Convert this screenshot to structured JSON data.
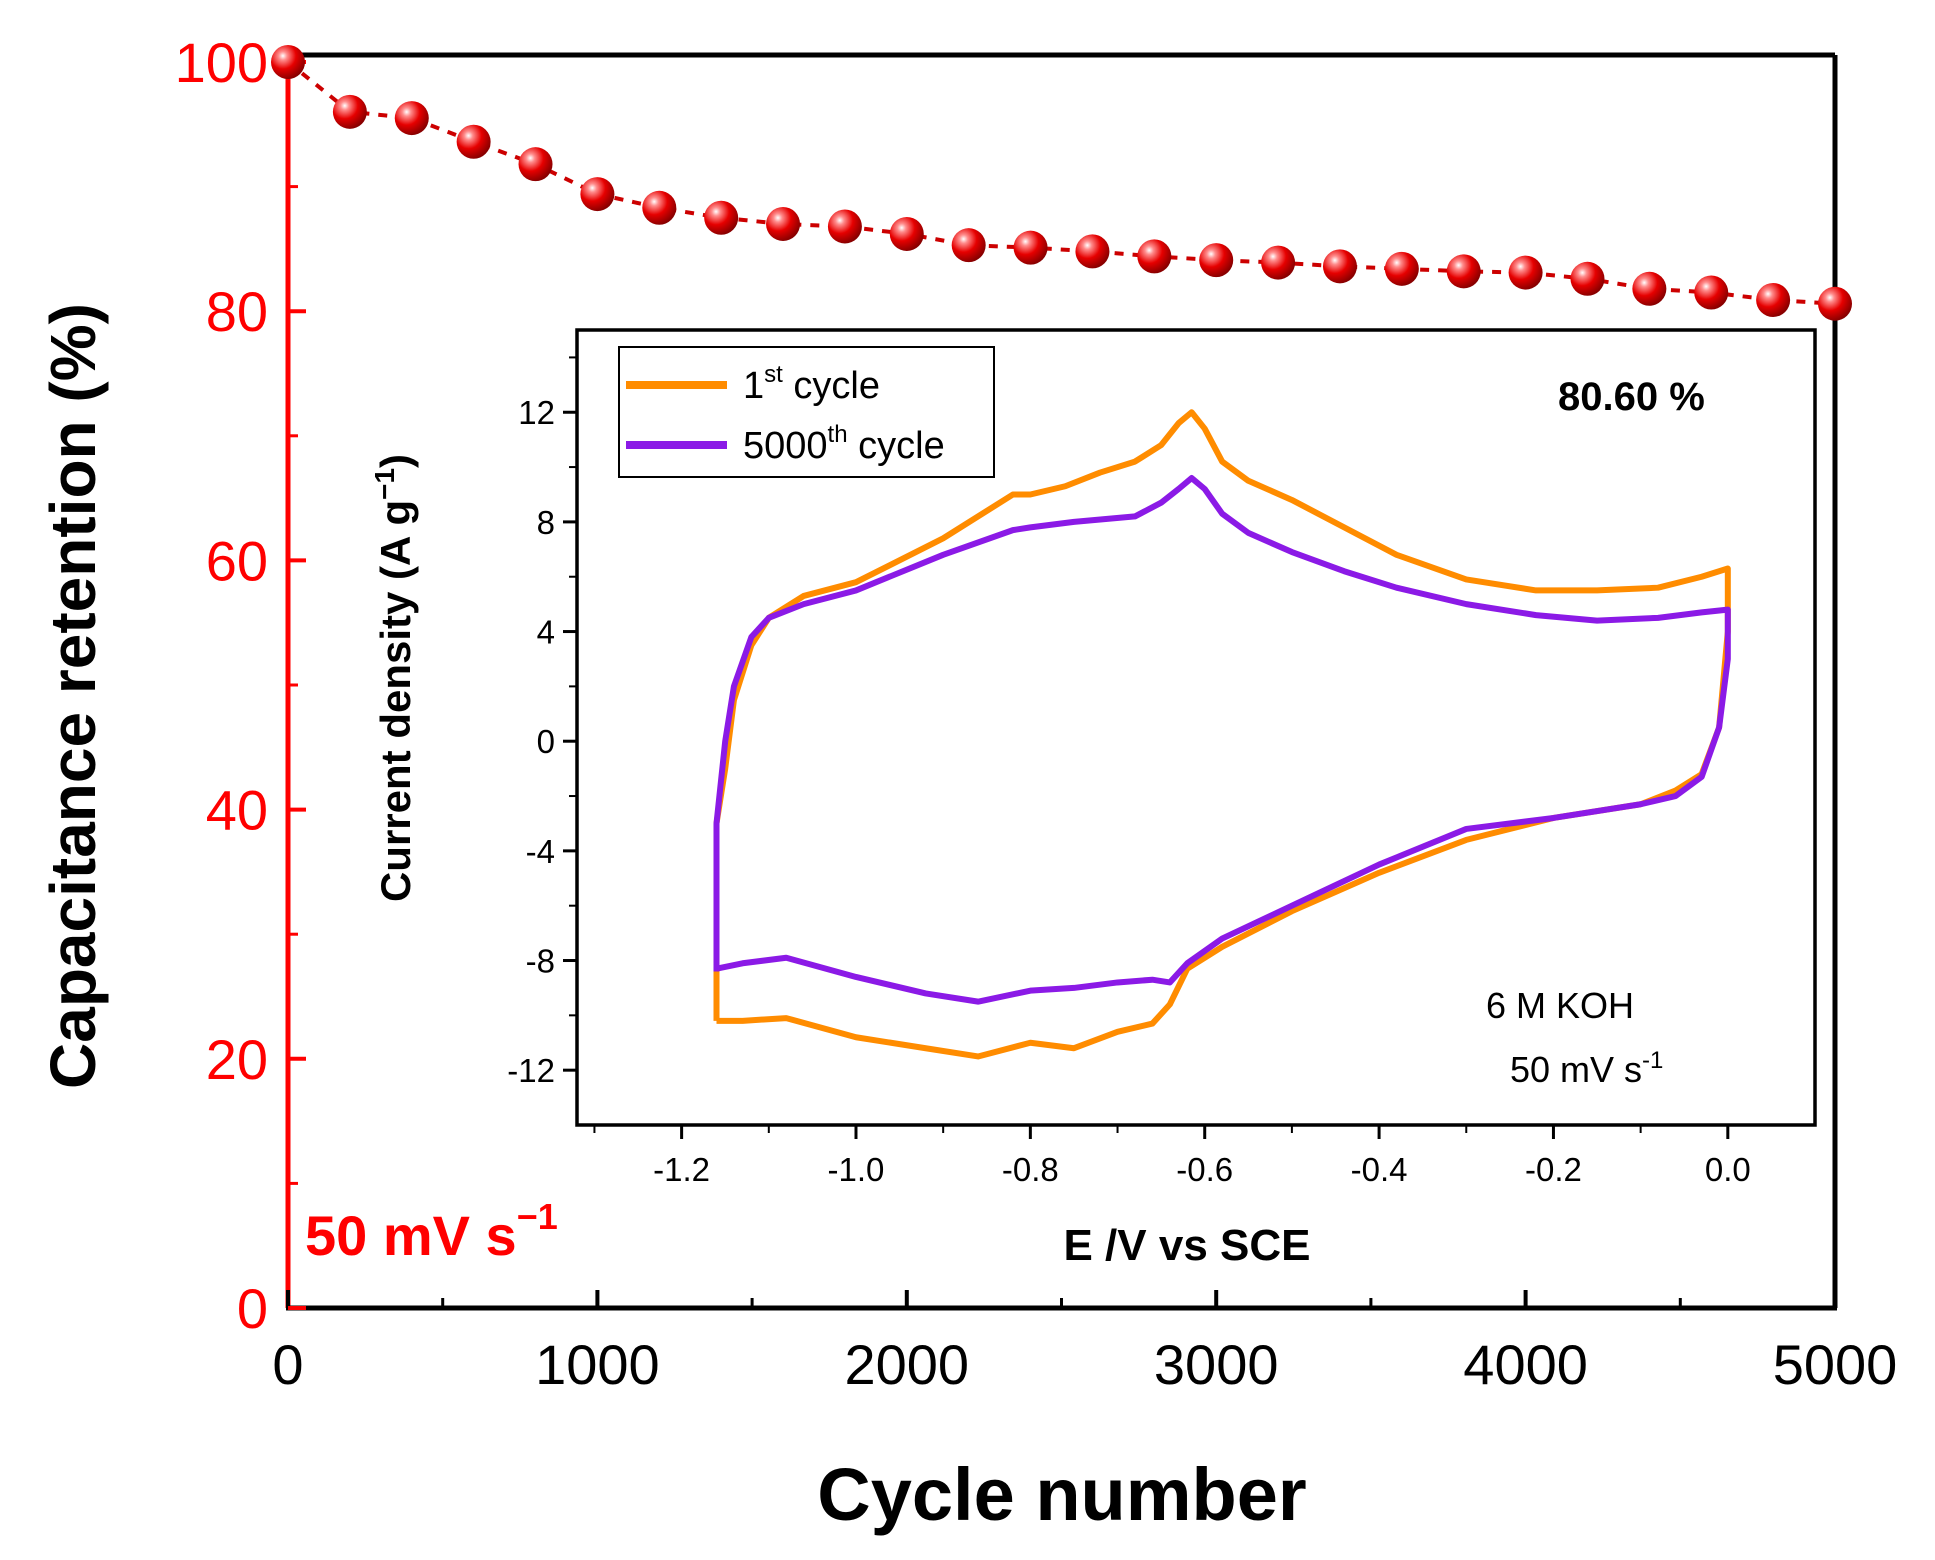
{
  "chart_data": [
    {
      "id": "main",
      "type": "line",
      "xlabel": "Cycle number",
      "ylabel": "Capacitance retention (%)",
      "xlim": [
        0,
        5000
      ],
      "ylim": [
        0,
        100
      ],
      "x_ticks": [
        0,
        1000,
        2000,
        3000,
        4000,
        5000
      ],
      "y_ticks": [
        0,
        20,
        40,
        60,
        80,
        100
      ],
      "annotation": {
        "prefix": "50 mV s",
        "superscript": "−1"
      },
      "series": [
        {
          "name": "Capacitance retention",
          "color": "#ff0000",
          "x": [
            0,
            200,
            400,
            600,
            800,
            1000,
            1200,
            1400,
            1600,
            1800,
            2000,
            2200,
            2400,
            2600,
            2800,
            3000,
            3200,
            3400,
            3600,
            3800,
            4000,
            4200,
            4400,
            4600,
            4800,
            5000
          ],
          "y": [
            100,
            96.0,
            95.5,
            93.6,
            91.8,
            89.4,
            88.3,
            87.5,
            87.0,
            86.8,
            86.2,
            85.3,
            85.1,
            84.8,
            84.4,
            84.1,
            83.9,
            83.6,
            83.4,
            83.2,
            83.1,
            82.6,
            81.8,
            81.5,
            80.9,
            80.6
          ]
        }
      ]
    },
    {
      "id": "inset",
      "type": "line",
      "xlabel": "E /V vs SCE",
      "ylabel_prefix": "Current density (A g",
      "ylabel_sup": "−1",
      "ylabel_suffix": ")",
      "xlim": [
        -1.32,
        0.1
      ],
      "ylim": [
        -14,
        15
      ],
      "x_ticks": [
        -1.2,
        -1.0,
        -0.8,
        -0.6,
        -0.4,
        -0.2,
        0.0
      ],
      "x_tick_labels": [
        "-1.2",
        "-1.0",
        "-0.8",
        "-0.6",
        "-0.4",
        "-0.2",
        "0.0"
      ],
      "y_ticks": [
        -12,
        -8,
        -4,
        0,
        4,
        8,
        12
      ],
      "retention_label": "80.60 %",
      "conditions": [
        "6 M KOH",
        "50 mV s"
      ],
      "conditions_sup": "-1",
      "legend": [
        {
          "base": "1",
          "sup": "st",
          "rest": " cycle",
          "color": "#ff8c00"
        },
        {
          "base": "5000",
          "sup": "th",
          "rest": " cycle",
          "color": "#8b1ae6"
        }
      ],
      "series": [
        {
          "name": "1st cycle",
          "color": "#ff8c00",
          "x": [
            -1.16,
            -1.16,
            -1.15,
            -1.14,
            -1.12,
            -1.1,
            -1.06,
            -1.0,
            -0.9,
            -0.82,
            -0.8,
            -0.76,
            -0.72,
            -0.68,
            -0.65,
            -0.63,
            -0.615,
            -0.6,
            -0.58,
            -0.55,
            -0.5,
            -0.44,
            -0.38,
            -0.3,
            -0.22,
            -0.15,
            -0.08,
            -0.03,
            0.0,
            0.0,
            -0.01,
            -0.03,
            -0.06,
            -0.1,
            -0.2,
            -0.3,
            -0.4,
            -0.5,
            -0.58,
            -0.62,
            -0.64,
            -0.66,
            -0.7,
            -0.75,
            -0.8,
            -0.86,
            -0.92,
            -1.0,
            -1.08,
            -1.13,
            -1.16,
            -1.16
          ],
          "y": [
            -10.2,
            -3.0,
            -1.0,
            1.5,
            3.5,
            4.5,
            5.3,
            5.8,
            7.4,
            9.0,
            9.0,
            9.3,
            9.8,
            10.2,
            10.8,
            11.6,
            12.0,
            11.4,
            10.2,
            9.5,
            8.8,
            7.8,
            6.8,
            5.9,
            5.5,
            5.5,
            5.6,
            6.0,
            6.3,
            4.0,
            0.5,
            -1.2,
            -1.8,
            -2.3,
            -2.8,
            -3.6,
            -4.8,
            -6.2,
            -7.5,
            -8.3,
            -9.6,
            -10.3,
            -10.6,
            -11.2,
            -11.0,
            -11.5,
            -11.2,
            -10.8,
            -10.1,
            -10.2,
            -10.2,
            -10.2
          ]
        },
        {
          "name": "5000th cycle",
          "color": "#8b1ae6",
          "x": [
            -1.16,
            -1.16,
            -1.15,
            -1.14,
            -1.12,
            -1.1,
            -1.06,
            -1.0,
            -0.9,
            -0.82,
            -0.8,
            -0.75,
            -0.68,
            -0.65,
            -0.63,
            -0.615,
            -0.6,
            -0.58,
            -0.55,
            -0.5,
            -0.44,
            -0.38,
            -0.3,
            -0.22,
            -0.15,
            -0.08,
            -0.03,
            0.0,
            0.0,
            -0.01,
            -0.03,
            -0.06,
            -0.1,
            -0.2,
            -0.3,
            -0.4,
            -0.5,
            -0.58,
            -0.62,
            -0.64,
            -0.66,
            -0.7,
            -0.75,
            -0.8,
            -0.86,
            -0.92,
            -1.0,
            -1.08,
            -1.13,
            -1.16,
            -1.16
          ],
          "y": [
            -8.4,
            -3.0,
            0.0,
            2.0,
            3.8,
            4.5,
            5.0,
            5.5,
            6.8,
            7.7,
            7.8,
            8.0,
            8.2,
            8.7,
            9.2,
            9.6,
            9.2,
            8.3,
            7.6,
            6.9,
            6.2,
            5.6,
            5.0,
            4.6,
            4.4,
            4.5,
            4.7,
            4.8,
            3.0,
            0.5,
            -1.3,
            -2.0,
            -2.3,
            -2.8,
            -3.2,
            -4.5,
            -6.0,
            -7.2,
            -8.1,
            -8.8,
            -8.7,
            -8.8,
            -9.0,
            -9.1,
            -9.5,
            -9.2,
            -8.6,
            -7.9,
            -8.1,
            -8.3,
            -8.4
          ]
        }
      ]
    }
  ]
}
